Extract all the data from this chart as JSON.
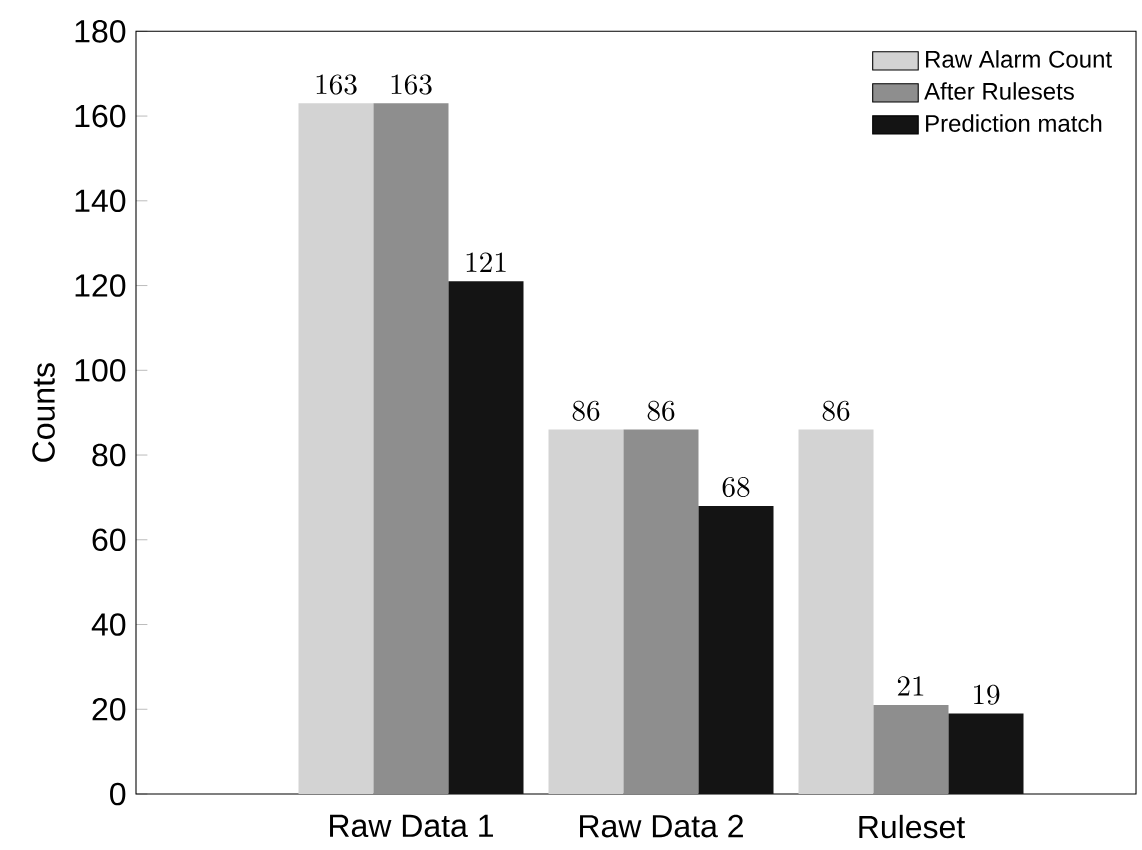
{
  "chart_data": {
    "type": "bar",
    "ylabel": "Counts",
    "categories": [
      "Raw Data 1",
      "Raw Data 2",
      "Ruleset"
    ],
    "series": [
      {
        "name": "Raw Alarm Count",
        "color": "#d3d3d3",
        "values": [
          163,
          86,
          86
        ]
      },
      {
        "name": "After Rulesets",
        "color": "#8e8e8e",
        "values": [
          163,
          86,
          21
        ]
      },
      {
        "name": "Prediction match",
        "color": "#141414",
        "values": [
          121,
          68,
          19
        ]
      }
    ],
    "ylim": [
      0,
      180
    ],
    "yticks": [
      0,
      20,
      40,
      60,
      80,
      100,
      120,
      140,
      160,
      180
    ],
    "data_labels": true,
    "legend": "top right",
    "grid": false
  }
}
